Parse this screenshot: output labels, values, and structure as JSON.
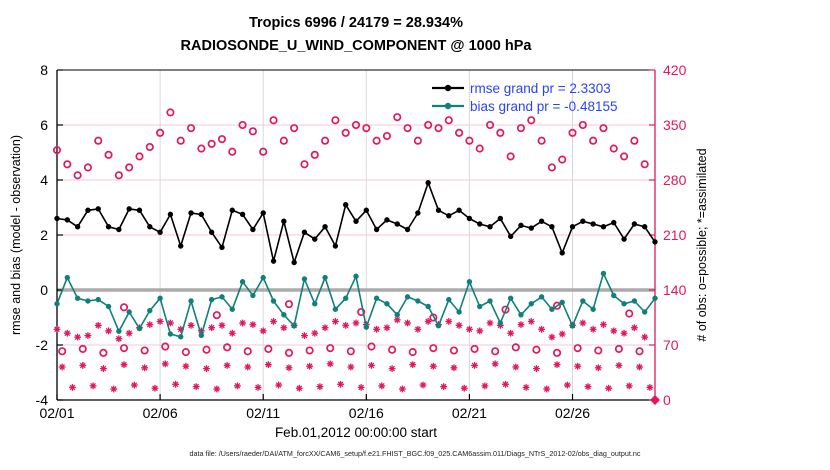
{
  "title": {
    "line1": "Tropics 6996 / 24179 = 28.934%",
    "line2": "RADIOSONDE_U_WIND_COMPONENT @ 1000 hPa"
  },
  "legend": {
    "rmse_label": "rmse grand pr = 2.3303",
    "bias_label": "bias grand pr = -0.48155",
    "text_color": "#2B43F5"
  },
  "footer": {
    "text": "data file: /Users/raeder/DAI/ATM_forcXX/CAM6_setup/f.e21.FHIST_BGC.f09_025.CAM6assim.011/Diags_NTrS_2012-02/obs_diag_output.nc"
  },
  "colors": {
    "rmse": "#000000",
    "bias": "#11807A",
    "obs": "#E0185E",
    "grid_vertical": "#D8D8D8",
    "grid_horizontal": "#F5C8D6",
    "zero_line": "#ABABAB",
    "axis_black": "#000000",
    "background": "#FFFFFF"
  },
  "chart_data": {
    "type": "line",
    "title": "Tropics 6996 / 24179 = 28.934%",
    "subtitle": "RADIOSONDE_U_WIND_COMPONENT @ 1000 hPa",
    "xlabel": "Feb.01,2012 00:00:00 start",
    "ylabel_left": "rmse and bias (model - observation)",
    "ylabel_right": "# of obs: o=possible; *=assimilated",
    "ylim_left": [
      -4,
      8
    ],
    "yticks_left": [
      8,
      6,
      4,
      2,
      0,
      -2,
      -4
    ],
    "ylim_right": [
      0,
      420
    ],
    "yticks_right": [
      420,
      350,
      280,
      210,
      140,
      70,
      0
    ],
    "x_range_days": [
      0,
      29
    ],
    "x_tick_days": [
      0,
      5,
      10,
      15,
      20,
      25
    ],
    "x_ticks": [
      "02/01",
      "02/06",
      "02/11",
      "02/16",
      "02/21",
      "02/26"
    ],
    "grid": true,
    "legend_position": "top-right-inside",
    "series": [
      {
        "name": "rmse",
        "axis": "left",
        "style": "line-marker",
        "t0": 0,
        "dt": 0.5,
        "values": [
          2.6,
          2.55,
          2.3,
          2.9,
          2.95,
          2.3,
          2.2,
          2.95,
          2.9,
          2.3,
          2.1,
          2.75,
          1.6,
          2.8,
          2.75,
          2.1,
          1.55,
          2.9,
          2.75,
          2.2,
          2.8,
          1.05,
          2.5,
          1.0,
          2.1,
          1.85,
          2.3,
          1.6,
          3.1,
          2.5,
          2.9,
          2.2,
          2.55,
          2.4,
          2.2,
          2.8,
          3.9,
          2.9,
          2.7,
          2.9,
          2.6,
          2.4,
          2.3,
          2.6,
          1.95,
          2.35,
          2.25,
          2.5,
          2.3,
          1.35,
          2.3,
          2.5,
          2.4,
          2.3,
          2.45,
          1.85,
          2.4,
          2.3,
          1.75
        ]
      },
      {
        "name": "bias",
        "axis": "left",
        "style": "line-marker",
        "t0": 0,
        "dt": 0.5,
        "values": [
          -0.5,
          0.45,
          -0.3,
          -0.4,
          -0.35,
          -0.6,
          -1.5,
          -0.8,
          -1.4,
          -0.75,
          -0.3,
          -1.6,
          -1.7,
          -0.4,
          -1.65,
          -0.35,
          -0.25,
          -0.7,
          0.3,
          -0.2,
          0.45,
          -0.4,
          -0.9,
          -1.3,
          0.4,
          -0.5,
          0.45,
          -0.7,
          -0.3,
          0.5,
          -1.35,
          -0.3,
          -0.5,
          -0.9,
          -0.25,
          -0.4,
          -0.6,
          -1.3,
          -0.35,
          -0.8,
          0.3,
          -0.6,
          -0.4,
          -1.2,
          -0.3,
          -0.9,
          -0.5,
          -0.25,
          -0.7,
          -0.45,
          -1.3,
          -0.4,
          -0.7,
          0.6,
          -0.2,
          -0.5,
          -0.4,
          -0.8,
          -0.3
        ]
      },
      {
        "name": "possible_major",
        "axis": "right",
        "style": "circle",
        "t0": 0,
        "dt": 0.5,
        "values": [
          318,
          300,
          286,
          296,
          330,
          312,
          286,
          296,
          310,
          322,
          340,
          366,
          330,
          346,
          320,
          326,
          332,
          316,
          350,
          342,
          316,
          356,
          330,
          346,
          300,
          312,
          330,
          356,
          340,
          350,
          346,
          330,
          336,
          360,
          346,
          330,
          350,
          346,
          356,
          340,
          330,
          320,
          350,
          340,
          310,
          346,
          356,
          330,
          296,
          306,
          340,
          350,
          330,
          346,
          320,
          310,
          330,
          300
        ]
      },
      {
        "name": "assimilated_major",
        "axis": "right",
        "style": "asterisk",
        "t0": 0,
        "dt": 0.5,
        "values": [
          90,
          85,
          80,
          82,
          95,
          88,
          78,
          85,
          92,
          96,
          100,
          98,
          90,
          95,
          88,
          92,
          95,
          85,
          98,
          96,
          88,
          100,
          92,
          95,
          82,
          85,
          92,
          100,
          95,
          98,
          96,
          90,
          92,
          102,
          98,
          90,
          100,
          96,
          100,
          95,
          90,
          88,
          98,
          95,
          85,
          96,
          100,
          90,
          80,
          84,
          95,
          98,
          90,
          96,
          88,
          85,
          92,
          80
        ]
      },
      {
        "name": "possible_minor_06z",
        "axis": "right",
        "style": "circle",
        "t0": 0.25,
        "dt": 1,
        "values": [
          62,
          65,
          60,
          66,
          63,
          68,
          61,
          64,
          67,
          62,
          65,
          60,
          63,
          66,
          62,
          68,
          64,
          61,
          66,
          63,
          65,
          62,
          67,
          64,
          60,
          66,
          63,
          65,
          62
        ]
      },
      {
        "name": "possible_mid",
        "axis": "right",
        "style": "circle",
        "t": [
          3.25,
          7.75,
          11.25,
          14.75,
          18.25,
          21.75,
          24.25,
          27.75
        ],
        "values": [
          118,
          108,
          122,
          112,
          105,
          115,
          120,
          110
        ]
      },
      {
        "name": "assimilated_minor_06z",
        "axis": "right",
        "style": "asterisk",
        "t0": 0.25,
        "dt": 1,
        "values": [
          42,
          44,
          40,
          45,
          41,
          46,
          43,
          40,
          44,
          42,
          45,
          41,
          43,
          46,
          42,
          44,
          40,
          45,
          43,
          41,
          44,
          46,
          42,
          40,
          45,
          43,
          41,
          44,
          42
        ]
      },
      {
        "name": "assimilated_minor_18z",
        "axis": "right",
        "style": "asterisk",
        "t0": 0.75,
        "dt": 1,
        "values": [
          16,
          18,
          14,
          19,
          15,
          20,
          17,
          14,
          18,
          16,
          19,
          15,
          17,
          20,
          16,
          18,
          14,
          19,
          17,
          15,
          18,
          20,
          16,
          14,
          19,
          17,
          15,
          18,
          16
        ]
      }
    ],
    "final_marker": {
      "t": 29,
      "value": 0,
      "style": "diamond"
    }
  }
}
